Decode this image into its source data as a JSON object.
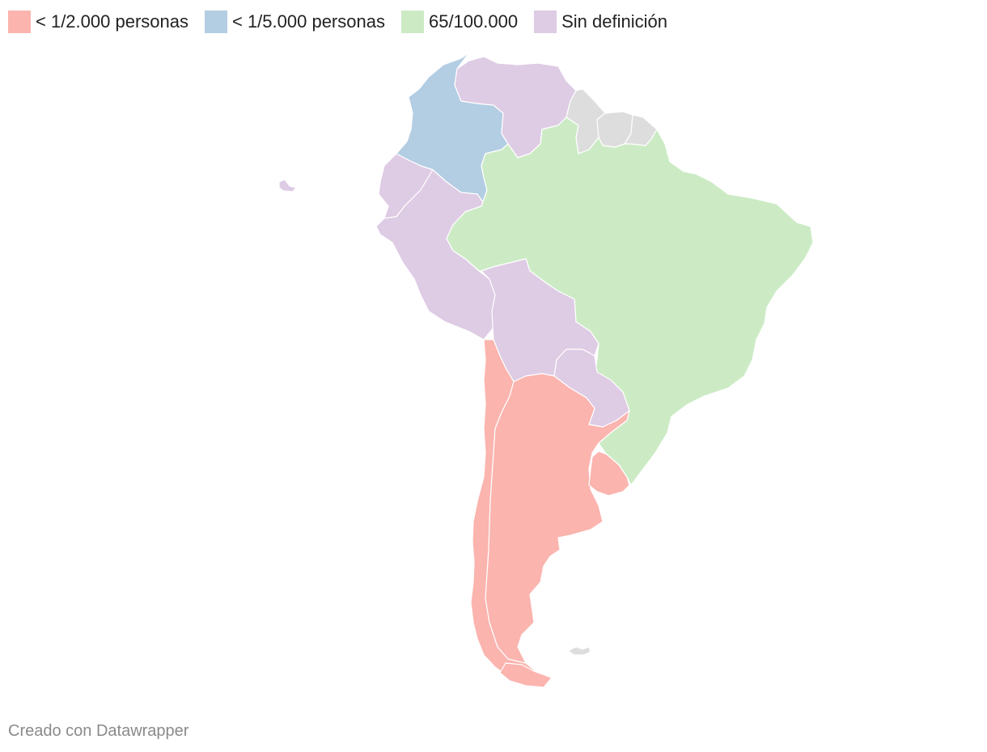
{
  "legend": {
    "items": [
      {
        "label": "< 1/2.000 personas",
        "color": "#fbb4ae"
      },
      {
        "label": "< 1/5.000 personas",
        "color": "#b3cde3"
      },
      {
        "label": "65/100.000",
        "color": "#ccebc5"
      },
      {
        "label": "Sin definición",
        "color": "#decbe4"
      }
    ]
  },
  "colors": {
    "no_data": "#dddddd",
    "border": "#ffffff"
  },
  "credit": "Creado con Datawrapper"
}
